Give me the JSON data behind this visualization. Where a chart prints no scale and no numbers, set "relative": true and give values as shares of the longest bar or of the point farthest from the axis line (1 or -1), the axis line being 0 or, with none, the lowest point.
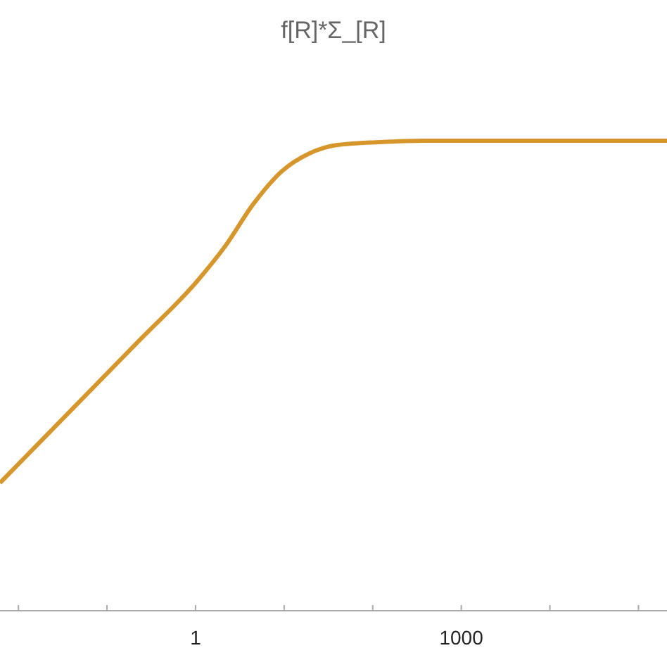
{
  "chart_data": {
    "type": "line",
    "title": "f[R]*Σ_[R]",
    "relative": true,
    "log": "x",
    "x": [
      0.0062,
      0.0386,
      0.24,
      1.04,
      2.15,
      4.48,
      9.3,
      19.3,
      40,
      120,
      360,
      210000
    ],
    "series": [
      {
        "color": "#d6962c",
        "values": [
          0.272,
          0.425,
          0.578,
          0.701,
          0.775,
          0.865,
          0.934,
          0.973,
          0.991,
          0.997,
          1,
          1
        ]
      }
    ],
    "xlim": [
      0.0062,
      210000
    ],
    "xticks": [
      {
        "value": 0.01,
        "label": null
      },
      {
        "value": 0.1,
        "label": null
      },
      1,
      {
        "value": 10,
        "label": null
      },
      {
        "value": 100,
        "label": null
      },
      1000,
      {
        "value": 10000,
        "label": null
      },
      {
        "value": 100000,
        "label": null
      }
    ],
    "grid": false,
    "marker": "none",
    "line_style": "solid"
  }
}
